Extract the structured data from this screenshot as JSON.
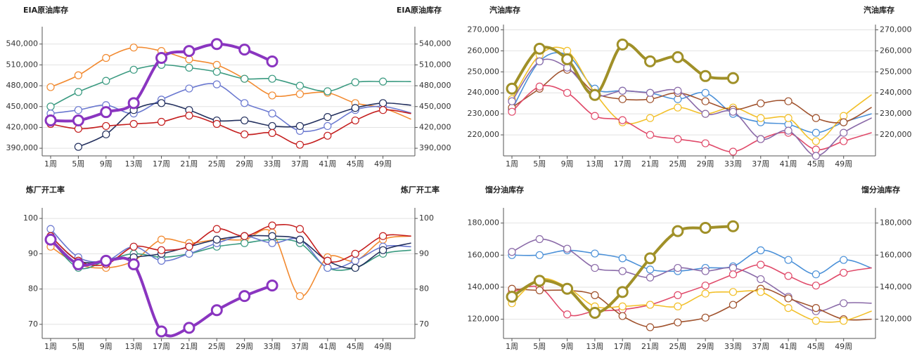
{
  "chart_data": [
    {
      "type": "line",
      "title": "EIA原油库存",
      "categories": [
        "1周",
        "5周",
        "9周",
        "13周",
        "17周",
        "21周",
        "25周",
        "29周",
        "33周",
        "37周",
        "41周",
        "45周",
        "49周",
        null
      ],
      "ylim": [
        379000,
        565000
      ],
      "yticks": [
        {
          "value": 390000,
          "label": "390,000"
        },
        {
          "value": 420000,
          "label": "420,000"
        },
        {
          "value": 450000,
          "label": "450,000"
        },
        {
          "value": 480000,
          "label": "480,000"
        },
        {
          "value": 510000,
          "label": "510,000"
        },
        {
          "value": 540000,
          "label": "540,000"
        }
      ],
      "series": [
        {
          "color": "#f28a30",
          "values": [
            478000,
            495000,
            520000,
            535000,
            530000,
            518000,
            510000,
            490000,
            466000,
            468000,
            470000,
            455000,
            448000,
            432000
          ]
        },
        {
          "color": "#3a9a80",
          "values": [
            450000,
            471000,
            487000,
            503000,
            510000,
            506000,
            500000,
            490000,
            490000,
            480000,
            472000,
            485000,
            486000,
            486000
          ]
        },
        {
          "color": "#6a78d0",
          "values": [
            440000,
            445000,
            452000,
            440000,
            460000,
            476000,
            482000,
            455000,
            440000,
            415000,
            422000,
            445000,
            450000,
            441000
          ]
        },
        {
          "color": "#23305e",
          "values": [
            null,
            392000,
            410000,
            445000,
            455000,
            445000,
            430000,
            430000,
            422000,
            422000,
            435000,
            448000,
            455000,
            452000
          ]
        },
        {
          "color": "#c41e1e",
          "values": [
            425000,
            418000,
            422000,
            425000,
            428000,
            437000,
            425000,
            410000,
            412000,
            395000,
            408000,
            430000,
            445000,
            440000
          ]
        },
        {
          "color": "#8a35c0",
          "line_width": 4,
          "values": [
            430000,
            430000,
            442000,
            455000,
            520000,
            530000,
            540000,
            532000,
            515000,
            null,
            null,
            null,
            null,
            null
          ]
        }
      ]
    },
    {
      "type": "line",
      "title": "汽油库存",
      "categories": [
        "1周",
        "5周",
        "9周",
        "13周",
        "17周",
        "21周",
        "25周",
        "29周",
        "33周",
        "37周",
        "41周",
        "45周",
        "49周",
        null
      ],
      "ylim": [
        210000,
        272500
      ],
      "yticks": [
        {
          "value": 220000,
          "label": "220,000"
        },
        {
          "value": 230000,
          "label": "230,000"
        },
        {
          "value": 240000,
          "label": "240,000"
        },
        {
          "value": 250000,
          "label": "250,000"
        },
        {
          "value": 260000,
          "label": "260,000"
        },
        {
          "value": 270000,
          "label": "270,000"
        }
      ],
      "series": [
        {
          "color": "#4a90d8",
          "values": [
            232000,
            255000,
            258000,
            242000,
            241000,
            240000,
            237000,
            240000,
            230000,
            226000,
            225000,
            221000,
            226000,
            230000
          ]
        },
        {
          "color": "#f2c02a",
          "values": [
            237000,
            258000,
            260000,
            240000,
            226000,
            228000,
            233000,
            230000,
            233000,
            228000,
            228000,
            217000,
            229000,
            239000
          ]
        },
        {
          "color": "#a0522d",
          "values": [
            233000,
            242000,
            251000,
            240000,
            237000,
            237000,
            240000,
            236000,
            232000,
            235000,
            236000,
            228000,
            226000,
            233000
          ]
        },
        {
          "color": "#e04a6a",
          "values": [
            231000,
            243000,
            240000,
            229000,
            227000,
            220000,
            218000,
            216000,
            212000,
            218000,
            221000,
            213000,
            217000,
            221000
          ]
        },
        {
          "color": "#8a6aa8",
          "values": [
            236000,
            255000,
            252000,
            239000,
            241000,
            240000,
            241000,
            230000,
            231000,
            218000,
            222000,
            210000,
            221000,
            228000
          ]
        },
        {
          "color": "#a09028",
          "line_width": 4,
          "values": [
            242000,
            261000,
            256000,
            239000,
            263000,
            255000,
            257000,
            248000,
            247000,
            null,
            null,
            null,
            null,
            null
          ]
        }
      ]
    },
    {
      "type": "line",
      "title": "炼厂开工率",
      "categories": [
        "1周",
        "5周",
        "9周",
        "13周",
        "17周",
        "21周",
        "25周",
        "29周",
        "33周",
        "37周",
        "41周",
        "45周",
        "49周",
        null
      ],
      "ylim": [
        66,
        103
      ],
      "yticks": [
        70,
        80,
        90,
        100
      ],
      "series": [
        {
          "color": "#f28a30",
          "values": [
            92,
            87,
            86,
            88,
            94,
            93,
            94,
            94,
            96,
            78,
            89,
            88,
            94,
            95
          ]
        },
        {
          "color": "#3a9a80",
          "values": [
            94,
            86,
            88,
            90,
            89,
            90,
            92,
            93,
            94,
            93,
            86,
            86,
            90,
            91
          ]
        },
        {
          "color": "#6a78d0",
          "values": [
            97,
            89,
            88,
            92,
            88,
            90,
            93,
            95,
            93,
            94,
            86,
            88,
            92,
            92
          ]
        },
        {
          "color": "#23305e",
          "values": [
            95,
            88,
            88,
            89,
            90,
            92,
            94,
            95,
            95,
            94,
            88,
            86,
            91,
            93
          ]
        },
        {
          "color": "#c41e1e",
          "values": [
            95,
            88,
            87,
            92,
            91,
            92,
            97,
            95,
            98,
            97,
            88,
            90,
            95,
            95
          ]
        },
        {
          "color": "#8a35c0",
          "line_width": 4,
          "values": [
            94,
            87,
            88,
            87,
            68,
            69,
            74,
            78,
            81,
            null,
            null,
            null,
            null,
            null
          ]
        }
      ]
    },
    {
      "type": "line",
      "title": "馏分油库存",
      "categories": [
        "1周",
        "5周",
        "9周",
        "13周",
        "17周",
        "21周",
        "25周",
        "29周",
        "33周",
        "37周",
        "41周",
        "45周",
        "49周",
        null
      ],
      "ylim": [
        108000,
        189500
      ],
      "yticks": [
        {
          "value": 120000,
          "label": "120,000"
        },
        {
          "value": 140000,
          "label": "140,000"
        },
        {
          "value": 160000,
          "label": "160,000"
        },
        {
          "value": 180000,
          "label": "180,000"
        }
      ],
      "series": [
        {
          "color": "#4a90d8",
          "values": [
            160000,
            160000,
            163000,
            161000,
            158000,
            151000,
            150000,
            152000,
            153000,
            163000,
            157000,
            148000,
            157000,
            152000
          ]
        },
        {
          "color": "#8a6aa8",
          "values": [
            162000,
            170000,
            164000,
            152000,
            150000,
            146000,
            152000,
            150000,
            152000,
            145000,
            134000,
            125000,
            130000,
            130000
          ]
        },
        {
          "color": "#e04a6a",
          "values": [
            137000,
            140000,
            123000,
            125000,
            126000,
            129000,
            135000,
            141000,
            148000,
            154000,
            147000,
            141000,
            149000,
            152000
          ]
        },
        {
          "color": "#a0522d",
          "values": [
            139000,
            138000,
            138000,
            135000,
            122000,
            115000,
            118000,
            121000,
            129000,
            139000,
            133000,
            127000,
            120000,
            120000
          ]
        },
        {
          "color": "#f2c02a",
          "values": [
            130000,
            145000,
            140000,
            128000,
            128000,
            129000,
            128000,
            136000,
            137000,
            137000,
            127000,
            119000,
            119000,
            125000
          ]
        },
        {
          "color": "#a09028",
          "line_width": 4,
          "values": [
            134000,
            144000,
            139000,
            124000,
            137000,
            158000,
            175000,
            177000,
            178000,
            null,
            null,
            null,
            null,
            null
          ]
        }
      ]
    }
  ]
}
